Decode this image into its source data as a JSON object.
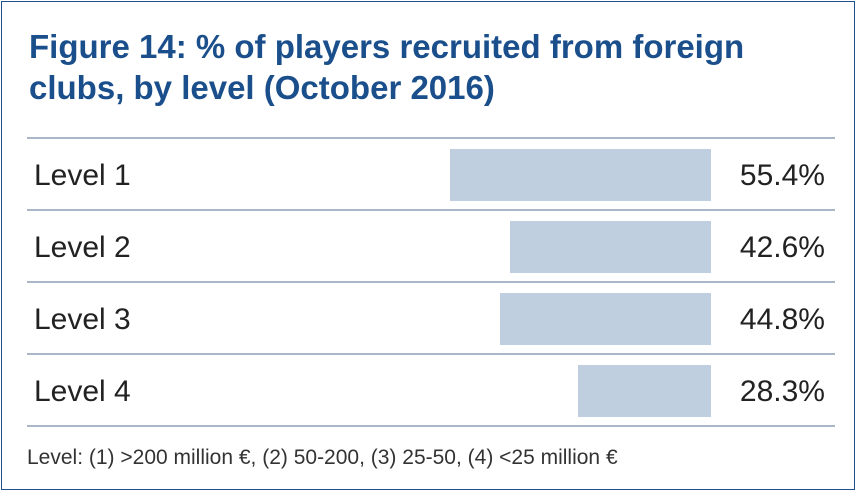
{
  "figure": {
    "title_line1": "Figure 14: % of players recruited from foreign",
    "title_line2": "clubs, by level (October 2016)",
    "footnote": "Level: (1) >200 million €, (2) 50-200, (3) 25-50, (4) <25 million €"
  },
  "chart_data": {
    "type": "bar",
    "orientation": "horizontal",
    "title": "Figure 14: % of players recruited from foreign clubs, by level (October 2016)",
    "categories": [
      "Level 1",
      "Level 2",
      "Level 3",
      "Level 4"
    ],
    "values": [
      55.4,
      42.6,
      44.8,
      28.3
    ],
    "value_labels": [
      "55.4%",
      "42.6%",
      "44.8%",
      "28.3%"
    ],
    "unit": "%",
    "xlabel": "",
    "ylabel": "",
    "xlim": [
      0,
      100
    ],
    "grid": false,
    "legend": "none",
    "bar_color": "#c0cfe0",
    "title_color": "#1a4f8b"
  }
}
